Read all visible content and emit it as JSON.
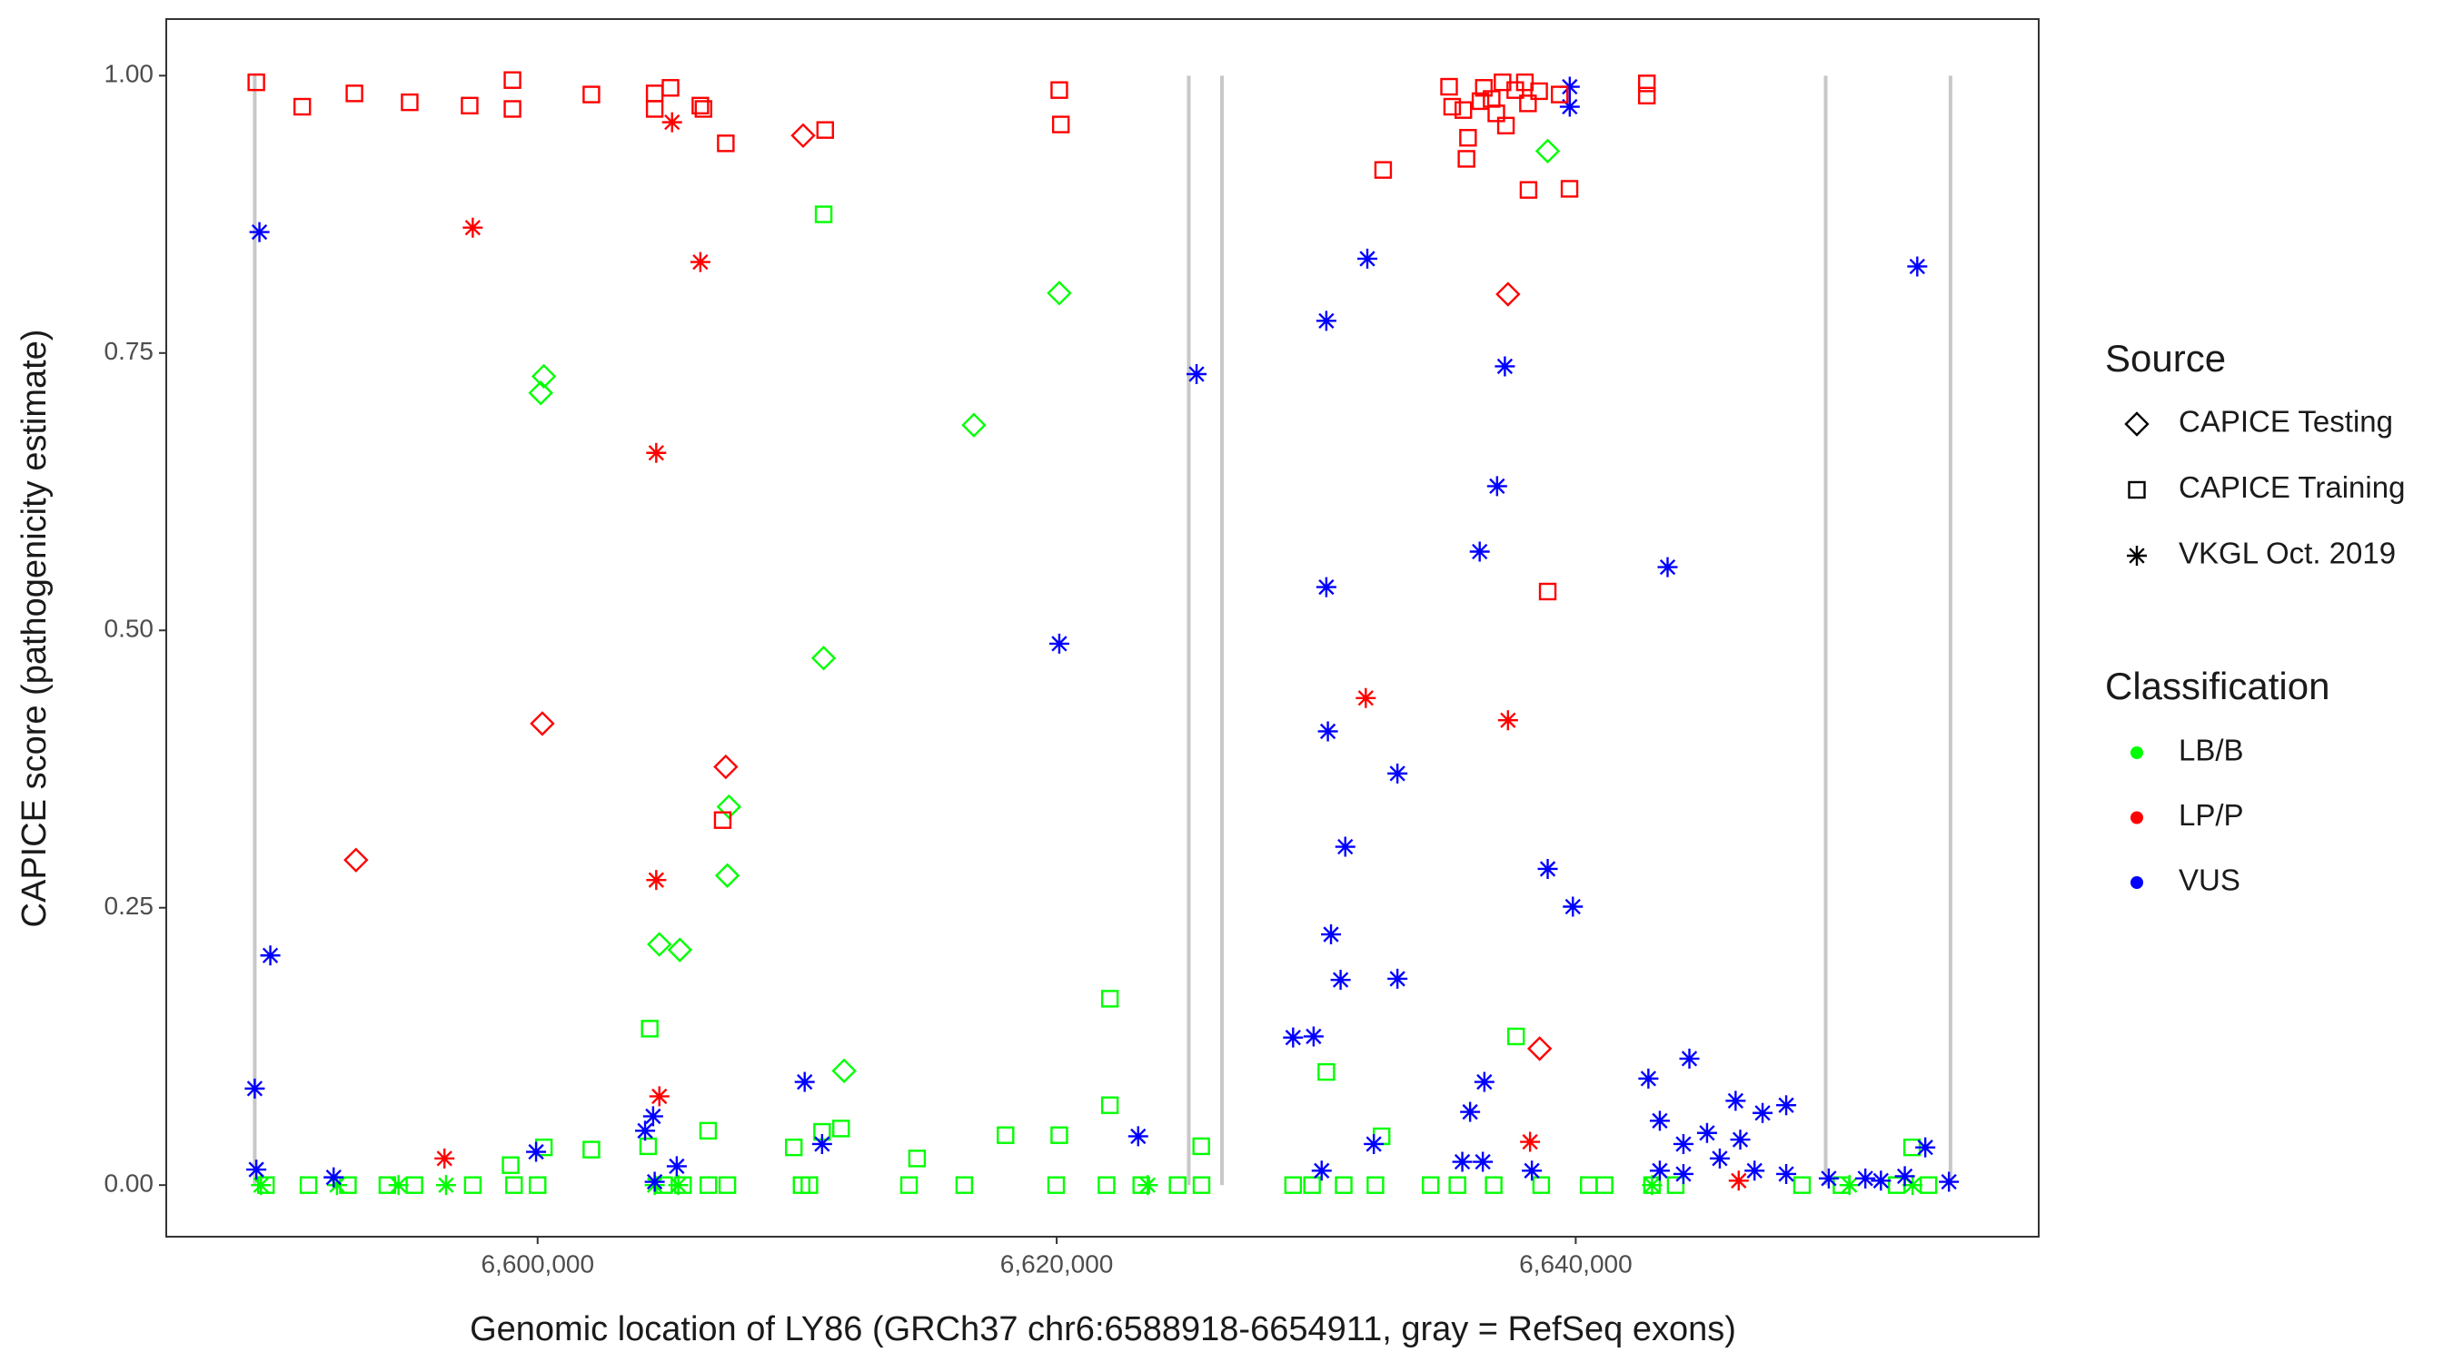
{
  "chart_data": {
    "type": "scatter",
    "x_label": "Genomic location of LY86 (GRCh37 chr6:6588918-6654911, gray = RefSeq exons)",
    "y_label": "CAPICE score (pathogenicity estimate)",
    "xlim": [
      6585690,
      6657840
    ],
    "ylim": [
      -0.0465,
      1.051
    ],
    "xticks": [
      {
        "value": 6600000,
        "label": "6,600,000"
      },
      {
        "value": 6620000,
        "label": "6,620,000"
      },
      {
        "value": 6640000,
        "label": "6,640,000"
      }
    ],
    "yticks": [
      {
        "value": 0,
        "label": "0.00"
      },
      {
        "value": 0.25,
        "label": "0.25"
      },
      {
        "value": 0.5,
        "label": "0.50"
      },
      {
        "value": 0.75,
        "label": "0.75"
      },
      {
        "value": 1,
        "label": "1.00"
      }
    ],
    "grid": false,
    "exon_color": "#c8c8c8",
    "exons": [
      6589100,
      6625090,
      6626370,
      6649630,
      6654440
    ],
    "legend_position": "right",
    "legend": {
      "source_title": "Source",
      "sources": [
        {
          "name": "CAPICE Testing",
          "shape": "diamond"
        },
        {
          "name": "CAPICE Training",
          "shape": "square"
        },
        {
          "name": "VKGL Oct. 2019",
          "shape": "star"
        }
      ],
      "class_title": "Classification",
      "classes": [
        {
          "name": "LB/B",
          "color": "#00ff00"
        },
        {
          "name": "LP/P",
          "color": "#ff0000"
        },
        {
          "name": "VUS",
          "color": "#0000ff"
        }
      ]
    },
    "series": [
      {
        "source": "CAPICE Training",
        "classification": "LB/B",
        "x": [
          6611020,
          6622050,
          6622050,
          6604320,
          6630390,
          6637700,
          6611690,
          6606570,
          6610960,
          6600240,
          6602070,
          6598960,
          6618030,
          6620100,
          6614620,
          6609870,
          6625570,
          6632520,
          6604260,
          6652960,
          6589530,
          6591170,
          6592690,
          6594210,
          6595250,
          6597500,
          6599090,
          6600000,
          6604870,
          6605600,
          6606580,
          6607310,
          6610170,
          6610470,
          6614310,
          6616440,
          6619980,
          6621920,
          6623260,
          6624660,
          6625580,
          6629110,
          6629840,
          6631060,
          6632280,
          6634410,
          6635440,
          6636840,
          6638670,
          6640500,
          6641110,
          6642940,
          6643850,
          6648720,
          6650240,
          6652370,
          6653590
        ],
        "y": [
          0.875,
          0.168,
          0.072,
          0.141,
          0.102,
          0.134,
          0.051,
          0.049,
          0.048,
          0.034,
          0.032,
          0.018,
          0.045,
          0.045,
          0.024,
          0.034,
          0.035,
          0.044,
          0.035,
          0.034,
          0,
          0,
          0,
          0,
          0,
          0,
          0,
          0,
          0,
          0,
          0,
          0,
          0,
          0,
          0,
          0,
          0,
          0,
          0,
          0,
          0,
          0,
          0,
          0,
          0,
          0,
          0,
          0,
          0,
          0,
          0,
          0,
          0,
          0,
          0,
          0,
          0
        ]
      },
      {
        "source": "VKGL Oct. 2019",
        "classification": "LB/B",
        "x": [
          6589340,
          6592270,
          6594640,
          6596470,
          6604510,
          6605420,
          6623510,
          6642940,
          6650550,
          6652980
        ],
        "y": [
          0,
          0,
          0,
          0,
          0,
          0,
          0,
          0,
          0,
          0
        ]
      },
      {
        "source": "CAPICE Testing",
        "classification": "LB/B",
        "x": [
          6600240,
          6600120,
          6620100,
          6616810,
          6611020,
          6607370,
          6607310,
          6604690,
          6605480,
          6611810,
          6638920
        ],
        "y": [
          0.729,
          0.714,
          0.804,
          0.685,
          0.475,
          0.341,
          0.279,
          0.217,
          0.212,
          0.103,
          0.932
        ]
      },
      {
        "source": "VKGL Oct. 2019",
        "classification": "VUS",
        "x": [
          6589280,
          6589700,
          6589100,
          6589160,
          6592140,
          6599940,
          6604140,
          6604450,
          6605360,
          6604510,
          6610290,
          6610960,
          6620100,
          6623140,
          6625390,
          6630390,
          6631970,
          6630390,
          6630450,
          6631120,
          6630570,
          6630940,
          6633130,
          6633130,
          6629110,
          6629900,
          6630210,
          6632220,
          6637270,
          6636970,
          6636300,
          6638920,
          6639890,
          6639770,
          6639770,
          6643540,
          6636480,
          6635930,
          6635630,
          6636420,
          6638310,
          6642800,
          6644380,
          6643240,
          6644150,
          6645060,
          6646160,
          6647200,
          6648110,
          6646340,
          6645550,
          6646890,
          6648110,
          6643240,
          6644150,
          6649750,
          6651760,
          6653470,
          6653160,
          6654380,
          6652680,
          6651160
        ],
        "y": [
          0.859,
          0.207,
          0.087,
          0.014,
          0.007,
          0.03,
          0.049,
          0.062,
          0.017,
          0.003,
          0.093,
          0.037,
          0.488,
          0.044,
          0.731,
          0.779,
          0.835,
          0.539,
          0.409,
          0.305,
          0.226,
          0.185,
          0.371,
          0.186,
          0.133,
          0.134,
          0.013,
          0.037,
          0.738,
          0.63,
          0.571,
          0.285,
          0.251,
          0.99,
          0.972,
          0.557,
          0.093,
          0.066,
          0.021,
          0.021,
          0.013,
          0.096,
          0.114,
          0.058,
          0.037,
          0.047,
          0.076,
          0.065,
          0.072,
          0.041,
          0.024,
          0.013,
          0.01,
          0.013,
          0.01,
          0.006,
          0.004,
          0.034,
          0.828,
          0.003,
          0.008,
          0.006
        ]
      },
      {
        "source": "CAPICE Training",
        "classification": "LP/P",
        "x": [
          6589160,
          6590930,
          6592940,
          6595070,
          6597380,
          6599030,
          6599030,
          6602070,
          6604510,
          6604510,
          6605120,
          6606270,
          6606390,
          6607250,
          6611080,
          6620100,
          6620160,
          6607130,
          6632580,
          6638180,
          6639760,
          6638920,
          6635120,
          6635240,
          6635670,
          6635850,
          6635790,
          6636460,
          6636760,
          6636940,
          6637180,
          6637310,
          6637670,
          6638040,
          6638160,
          6638590,
          6639380,
          6642740,
          6642740,
          6636330
        ],
        "y": [
          0.994,
          0.972,
          0.984,
          0.976,
          0.973,
          0.996,
          0.97,
          0.983,
          0.984,
          0.97,
          0.989,
          0.973,
          0.97,
          0.939,
          0.951,
          0.987,
          0.956,
          0.329,
          0.915,
          0.897,
          0.898,
          0.535,
          0.99,
          0.972,
          0.969,
          0.944,
          0.925,
          0.989,
          0.979,
          0.966,
          0.994,
          0.955,
          0.987,
          0.994,
          0.975,
          0.986,
          0.983,
          0.993,
          0.982,
          0.977
        ]
      },
      {
        "source": "VKGL Oct. 2019",
        "classification": "LP/P",
        "x": [
          6597500,
          6605180,
          6606270,
          6604570,
          6604570,
          6604690,
          6596410,
          6631910,
          6637390,
          6638240,
          6646280
        ],
        "y": [
          0.863,
          0.958,
          0.832,
          0.66,
          0.275,
          0.08,
          0.024,
          0.439,
          0.419,
          0.039,
          0.004
        ]
      },
      {
        "source": "CAPICE Testing",
        "classification": "LP/P",
        "x": [
          6593000,
          6600180,
          6610230,
          6607250,
          6637390,
          6638610
        ],
        "y": [
          0.293,
          0.416,
          0.946,
          0.377,
          0.803,
          0.123
        ]
      }
    ]
  }
}
